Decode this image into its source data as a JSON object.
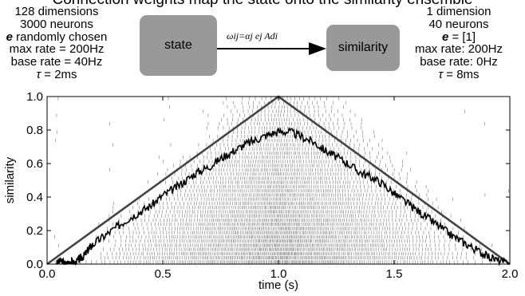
{
  "caption_fragment": "Connection weights map the state onto the similarity ensemble",
  "left_ensemble": {
    "lines": [
      "128 dimensions",
      "3000 neurons",
      "randomly chosen",
      "max rate = 200Hz",
      "base rate = 40Hz",
      "= 2ms"
    ],
    "encoder_symbol": "e",
    "tau_symbol": "τ"
  },
  "right_ensemble": {
    "lines": [
      "1 dimension",
      "40 neurons",
      "= [1]",
      "max rate: 200Hz",
      "base rate: 0Hz",
      "= 8ms"
    ],
    "encoder_symbol": "e",
    "tau_symbol": "τ"
  },
  "diagram": {
    "state_label": "state",
    "similarity_label": "similarity",
    "weight_formula": "ωij=αj ej Adi",
    "box_color": "#999999"
  },
  "chart_data": {
    "type": "line",
    "xlabel": "time (s)",
    "ylabel": "similarity",
    "xlim": [
      0.0,
      2.0
    ],
    "ylim": [
      0.0,
      1.0
    ],
    "xticks": [
      "0.0",
      "0.5",
      "1.0",
      "1.5",
      "2.0"
    ],
    "yticks": [
      "0.0",
      "0.2",
      "0.4",
      "0.6",
      "0.8",
      "1.0"
    ],
    "grid": false,
    "series": [
      {
        "style": "ideal",
        "color": "#444444",
        "x": [
          0.0,
          1.0,
          2.0
        ],
        "y": [
          0.0,
          1.0,
          0.0
        ]
      },
      {
        "style": "decoded",
        "color": "#000000",
        "x": [
          0.04,
          0.06,
          0.08,
          0.1,
          0.12,
          0.14,
          0.16,
          0.18,
          0.2,
          0.25,
          0.3,
          0.35,
          0.4,
          0.45,
          0.5,
          0.55,
          0.6,
          0.65,
          0.7,
          0.75,
          0.8,
          0.85,
          0.9,
          0.95,
          1.0,
          1.05,
          1.1,
          1.15,
          1.2,
          1.25,
          1.3,
          1.35,
          1.4,
          1.45,
          1.5,
          1.55,
          1.6,
          1.65,
          1.7,
          1.75,
          1.8,
          1.85,
          1.9,
          1.95,
          2.0
        ],
        "y": [
          0.0,
          0.02,
          0.0,
          0.02,
          0.0,
          0.03,
          0.05,
          0.09,
          0.12,
          0.17,
          0.22,
          0.27,
          0.31,
          0.35,
          0.41,
          0.45,
          0.5,
          0.55,
          0.58,
          0.63,
          0.67,
          0.71,
          0.74,
          0.77,
          0.79,
          0.79,
          0.76,
          0.73,
          0.68,
          0.64,
          0.6,
          0.55,
          0.52,
          0.48,
          0.42,
          0.37,
          0.32,
          0.27,
          0.22,
          0.17,
          0.13,
          0.09,
          0.05,
          0.02,
          0.0
        ]
      }
    ],
    "spike_raster": {
      "neurons": 40
    }
  }
}
